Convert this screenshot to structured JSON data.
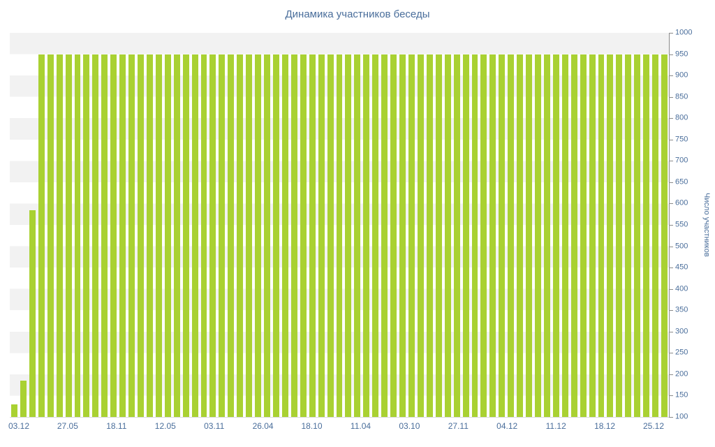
{
  "chart_data": {
    "type": "bar",
    "title": "Динамика участников беседы",
    "ylabel": "Число участников",
    "xlabel": "",
    "ylim": [
      100,
      1000
    ],
    "ytick_step": 50,
    "grid": "striped-horizontal-bands",
    "legend": "none",
    "x_tick_labels": [
      "03.12",
      "27.05",
      "18.11",
      "12.05",
      "03.11",
      "26.04",
      "18.10",
      "11.04",
      "03.10",
      "27.11",
      "04.12",
      "11.12",
      "18.12",
      "25.12"
    ],
    "values": [
      130,
      185,
      585,
      950,
      950,
      950,
      950,
      950,
      950,
      950,
      950,
      950,
      950,
      950,
      950,
      950,
      950,
      950,
      950,
      950,
      950,
      950,
      950,
      950,
      950,
      950,
      950,
      950,
      950,
      950,
      950,
      950,
      950,
      950,
      950,
      950,
      950,
      950,
      950,
      950,
      950,
      950,
      950,
      950,
      950,
      950,
      950,
      950,
      950,
      950,
      950,
      950,
      950,
      950,
      950,
      950,
      950,
      950,
      950,
      950,
      950,
      950,
      950,
      950,
      950,
      950,
      950,
      950,
      950,
      950,
      950,
      950,
      950
    ],
    "colors": {
      "bar": "#a9d132",
      "stripe": "#f2f2f2",
      "background": "#ffffff",
      "text": "#4a6e9b",
      "axis": "#8a8a8a"
    }
  }
}
